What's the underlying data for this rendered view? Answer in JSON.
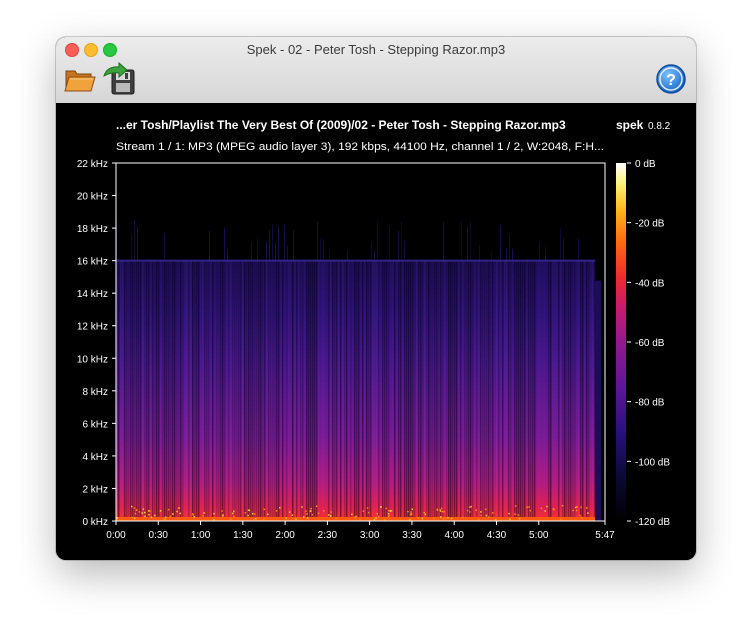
{
  "window": {
    "title": "Spek - 02 - Peter Tosh - Stepping Razor.mp3"
  },
  "toolbar": {
    "open_icon": "folder-open-icon",
    "save_icon": "save-export-icon",
    "help_icon": "help-question-icon",
    "help_label": "?"
  },
  "header": {
    "file_path": "...er Tosh/Playlist The Very Best Of (2009)/02 - Peter Tosh - Stepping Razor.mp3",
    "app_name": "spek",
    "app_version": "0.8.2",
    "stream_info": "Stream 1 / 1: MP3 (MPEG audio layer 3), 192 kbps, 44100 Hz, channel 1 / 2, W:2048, F:H..."
  },
  "colors": {
    "background": "#000000",
    "text": "#ffffff",
    "palette": [
      "#000000",
      "#0a0a34",
      "#2a107d",
      "#5c1698",
      "#93198f",
      "#c91c6b",
      "#ee2b2f",
      "#ff6a10",
      "#ffb71a",
      "#fff175",
      "#ffffff"
    ]
  },
  "chart_data": {
    "type": "heatmap",
    "description_axes": "time (x) vs frequency (y), intensity in dB",
    "x_ticks": [
      "0:00",
      "0:30",
      "1:00",
      "1:30",
      "2:00",
      "2:30",
      "3:00",
      "3:30",
      "4:00",
      "4:30",
      "5:00",
      "5:47"
    ],
    "x_tick_seconds": [
      0,
      30,
      60,
      90,
      120,
      150,
      180,
      210,
      240,
      270,
      300,
      347
    ],
    "x_range_seconds": [
      0,
      347
    ],
    "y_ticks": [
      "0 kHz",
      "2 kHz",
      "4 kHz",
      "6 kHz",
      "8 kHz",
      "10 kHz",
      "12 kHz",
      "14 kHz",
      "16 kHz",
      "18 kHz",
      "20 kHz",
      "22 kHz"
    ],
    "y_tick_khz": [
      0,
      2,
      4,
      6,
      8,
      10,
      12,
      14,
      16,
      18,
      20,
      22
    ],
    "y_range_khz": [
      0,
      22
    ],
    "colorbar_ticks": [
      "0 dB",
      "-20 dB",
      "-40 dB",
      "-60 dB",
      "-80 dB",
      "-100 dB",
      "-120 dB"
    ],
    "colorbar_values_db": [
      0,
      -20,
      -40,
      -60,
      -80,
      -100,
      -120
    ],
    "features": {
      "lowpass_cutoff_khz": 16,
      "sparse_content_up_to_khz": 18.5,
      "audio_end_seconds": 340
    }
  }
}
